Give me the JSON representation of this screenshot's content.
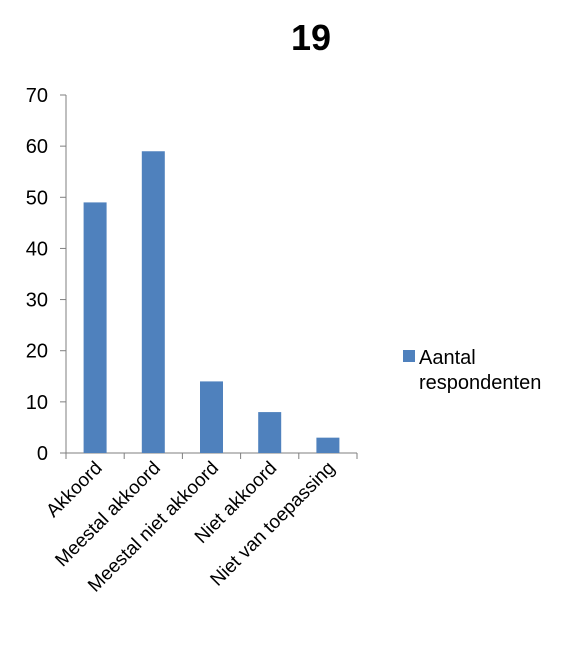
{
  "chart_data": {
    "type": "bar",
    "title": "19",
    "categories": [
      "Akkoord",
      "Meestal akkoord",
      "Meestal niet akkoord",
      "Niet akkoord",
      "Niet van toepassing"
    ],
    "series": [
      {
        "name": "Aantal respondenten",
        "values": [
          49,
          59,
          14,
          8,
          3
        ]
      }
    ],
    "legend_lines": [
      "Aantal",
      "respondenten"
    ],
    "ylim": [
      0,
      70
    ],
    "yticks": [
      0,
      10,
      20,
      30,
      40,
      50,
      60,
      70
    ],
    "grid": false,
    "legend_position": "right",
    "bar_color": "#4F81BD"
  }
}
